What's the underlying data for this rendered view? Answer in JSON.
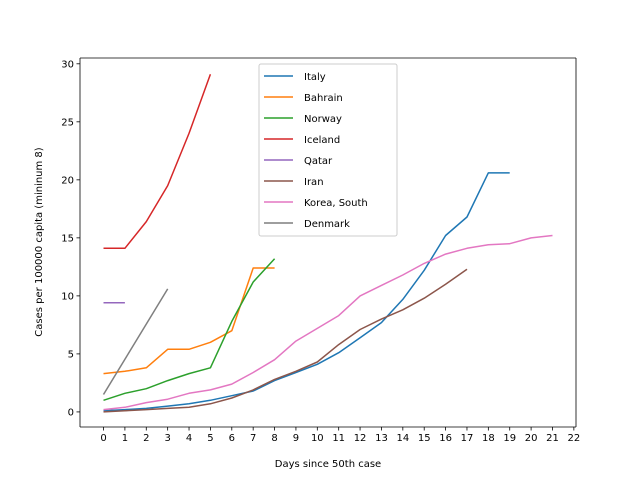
{
  "chart_data": {
    "type": "line",
    "title": "",
    "xlabel": "Days since 50th case",
    "ylabel": "Cases per 100000 capita (mininum 8)",
    "xlim": [
      -1.1,
      22.1
    ],
    "ylim": [
      -1.3,
      30.5
    ],
    "xticks": [
      0,
      1,
      2,
      3,
      4,
      5,
      6,
      7,
      8,
      9,
      10,
      11,
      12,
      13,
      14,
      15,
      16,
      17,
      18,
      19,
      20,
      21,
      22
    ],
    "yticks": [
      0,
      5,
      10,
      15,
      20,
      25,
      30
    ],
    "grid": false,
    "legend_position": "upper-center",
    "series": [
      {
        "name": "Italy",
        "color": "#1f77b4",
        "x": [
          0,
          1,
          2,
          3,
          4,
          5,
          6,
          7,
          8,
          9,
          10,
          11,
          12,
          13,
          14,
          15,
          16,
          17,
          18,
          19
        ],
        "y": [
          0.1,
          0.2,
          0.3,
          0.5,
          0.7,
          1.0,
          1.4,
          1.8,
          2.7,
          3.4,
          4.1,
          5.1,
          6.4,
          7.7,
          9.7,
          12.2,
          15.2,
          16.8,
          20.6,
          20.6
        ]
      },
      {
        "name": "Bahrain",
        "color": "#ff7f0e",
        "x": [
          0,
          1,
          2,
          3,
          4,
          5,
          6,
          7,
          8
        ],
        "y": [
          3.3,
          3.5,
          3.8,
          5.4,
          5.4,
          6.0,
          7.0,
          12.4,
          12.4
        ]
      },
      {
        "name": "Norway",
        "color": "#2ca02c",
        "x": [
          0,
          1,
          2,
          3,
          4,
          5,
          6,
          7,
          8
        ],
        "y": [
          1.0,
          1.6,
          2.0,
          2.7,
          3.3,
          3.8,
          7.8,
          11.2,
          13.2
        ]
      },
      {
        "name": "Iceland",
        "color": "#d62728",
        "x": [
          0,
          1,
          2,
          3,
          4,
          5
        ],
        "y": [
          14.1,
          14.1,
          16.4,
          19.5,
          24.0,
          29.1
        ]
      },
      {
        "name": "Qatar",
        "color": "#9467bd",
        "x": [
          0,
          1
        ],
        "y": [
          9.4,
          9.4
        ]
      },
      {
        "name": "Iran",
        "color": "#8c564b",
        "x": [
          0,
          1,
          2,
          3,
          4,
          5,
          6,
          7,
          8,
          9,
          10,
          11,
          12,
          13,
          14,
          15,
          16,
          17
        ],
        "y": [
          0.0,
          0.1,
          0.2,
          0.3,
          0.4,
          0.7,
          1.2,
          1.9,
          2.8,
          3.5,
          4.3,
          5.8,
          7.1,
          8.0,
          8.8,
          9.8,
          11.0,
          12.3
        ]
      },
      {
        "name": "Korea, South",
        "color": "#e377c2",
        "x": [
          0,
          1,
          2,
          3,
          4,
          5,
          6,
          7,
          8,
          9,
          10,
          11,
          12,
          13,
          14,
          15,
          16,
          17,
          18,
          19,
          20,
          21
        ],
        "y": [
          0.2,
          0.4,
          0.8,
          1.1,
          1.6,
          1.9,
          2.4,
          3.4,
          4.5,
          6.1,
          7.2,
          8.3,
          10.0,
          10.9,
          11.8,
          12.8,
          13.6,
          14.1,
          14.4,
          14.5,
          15.0,
          15.2
        ]
      },
      {
        "name": "Denmark",
        "color": "#7f7f7f",
        "x": [
          0,
          3
        ],
        "y": [
          1.5,
          10.6
        ]
      }
    ]
  }
}
